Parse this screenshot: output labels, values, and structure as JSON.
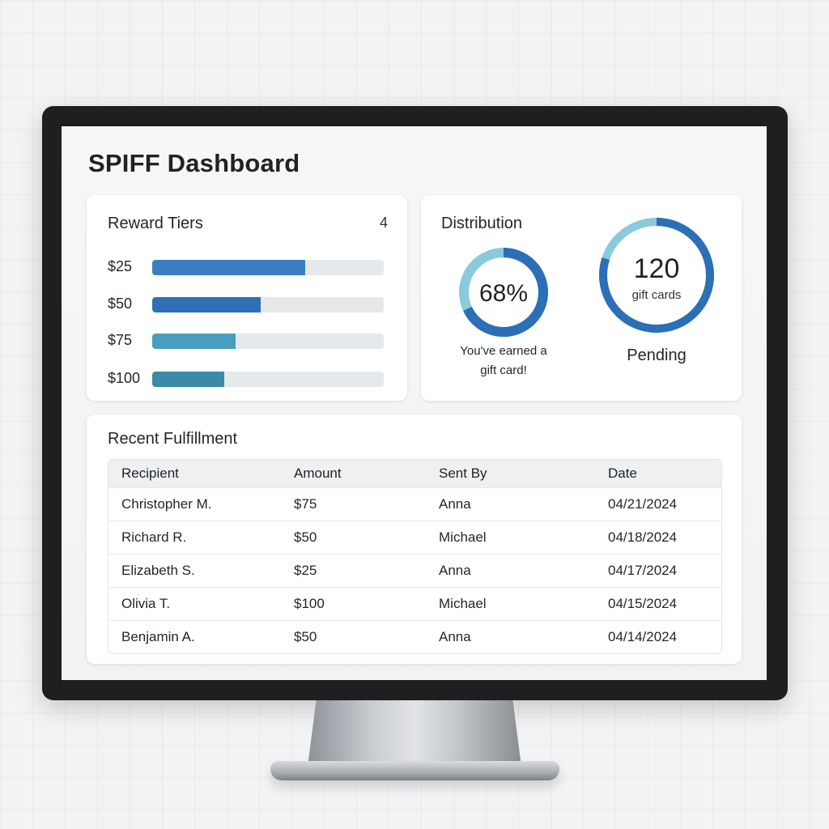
{
  "dashboard": {
    "title": "SPIFF Dashboard"
  },
  "reward_tiers": {
    "heading": "Reward Tiers",
    "count": "4",
    "tiers": [
      {
        "label": "$25",
        "progress": 0.66,
        "color": "#3b7fc0"
      },
      {
        "label": "$50",
        "progress": 0.47,
        "color": "#2f6fb5"
      },
      {
        "label": "$75",
        "progress": 0.36,
        "color": "#4a9ebd"
      },
      {
        "label": "$100",
        "progress": 0.31,
        "color": "#3a8aa8"
      }
    ]
  },
  "distribution": {
    "heading": "Distribution",
    "earned": {
      "value_text": "68%",
      "progress": 0.68,
      "caption_line1": "You've earned a",
      "caption_line2": "gift card!",
      "track_color": "#8bc9dc",
      "fill_color": "#2b6fb6"
    },
    "pending": {
      "value_text": "120",
      "sub_text": "gift cards",
      "progress": 0.8,
      "caption": "Pending",
      "track_color": "#8bc9dc",
      "fill_color": "#2b6fb6"
    }
  },
  "fulfillment": {
    "heading": "Recent Fulfillment",
    "columns": [
      "Recipient",
      "Amount",
      "Sent By",
      "Date"
    ],
    "rows": [
      [
        "Christopher M.",
        "$75",
        "Anna",
        "04/21/2024"
      ],
      [
        "Richard R.",
        "$50",
        "Michael",
        "04/18/2024"
      ],
      [
        "Elizabeth S.",
        "$25",
        "Anna",
        "04/17/2024"
      ],
      [
        "Olivia T.",
        "$100",
        "Michael",
        "04/15/2024"
      ],
      [
        "Benjamin A.",
        "$50",
        "Anna",
        "04/14/2024"
      ]
    ]
  }
}
